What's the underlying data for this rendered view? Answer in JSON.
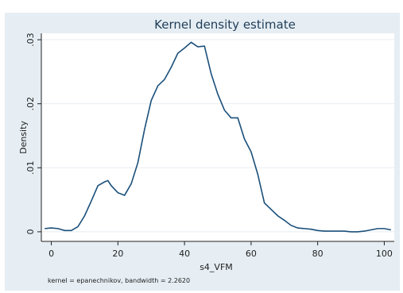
{
  "chart_data": {
    "type": "line",
    "title": "Kernel density estimate",
    "xlabel": "s4_VFM",
    "ylabel": "Density",
    "note": "kernel = epanechnikov, bandwidth = 2.2620",
    "xlim": [
      -3,
      103
    ],
    "ylim": [
      -0.0015,
      0.031
    ],
    "xticks": [
      0,
      20,
      40,
      60,
      80,
      100
    ],
    "yticks": [
      0,
      0.01,
      0.02,
      0.03
    ],
    "ytick_labels": [
      "0",
      ".01",
      ".02",
      ".03"
    ],
    "grid": true,
    "colors": {
      "background": "#e6eef4",
      "plot_area": "#ffffff",
      "line": "#1a4f7a",
      "title": "#1f3d57",
      "grid": "#e8eef2"
    },
    "series": [
      {
        "x": [
          -2,
          0,
          2,
          4,
          6,
          8,
          10,
          12,
          14,
          16,
          17,
          18,
          20,
          22,
          24,
          26,
          28,
          30,
          32,
          34,
          36,
          38,
          40,
          42,
          44,
          46,
          48,
          50,
          52,
          54,
          56,
          58,
          60,
          62,
          64,
          66,
          68,
          70,
          72,
          74,
          76,
          78,
          80,
          82,
          84,
          86,
          88,
          90,
          92,
          94,
          96,
          98,
          100,
          102
        ],
        "y": [
          0.0005,
          0.0006,
          0.0005,
          0.0002,
          0.0002,
          0.0008,
          0.0025,
          0.0048,
          0.0072,
          0.0078,
          0.008,
          0.0072,
          0.0061,
          0.0057,
          0.0075,
          0.0108,
          0.016,
          0.0205,
          0.0228,
          0.0238,
          0.0257,
          0.0279,
          0.0287,
          0.0296,
          0.0289,
          0.029,
          0.0247,
          0.0215,
          0.019,
          0.0178,
          0.0178,
          0.0145,
          0.0125,
          0.009,
          0.0045,
          0.0035,
          0.0025,
          0.0018,
          0.001,
          0.0006,
          0.0005,
          0.0004,
          0.0002,
          0.0001,
          0.0001,
          0.0001,
          0.0001,
          0.0,
          0.0,
          0.0001,
          0.0003,
          0.0005,
          0.0005,
          0.0003
        ]
      }
    ]
  }
}
